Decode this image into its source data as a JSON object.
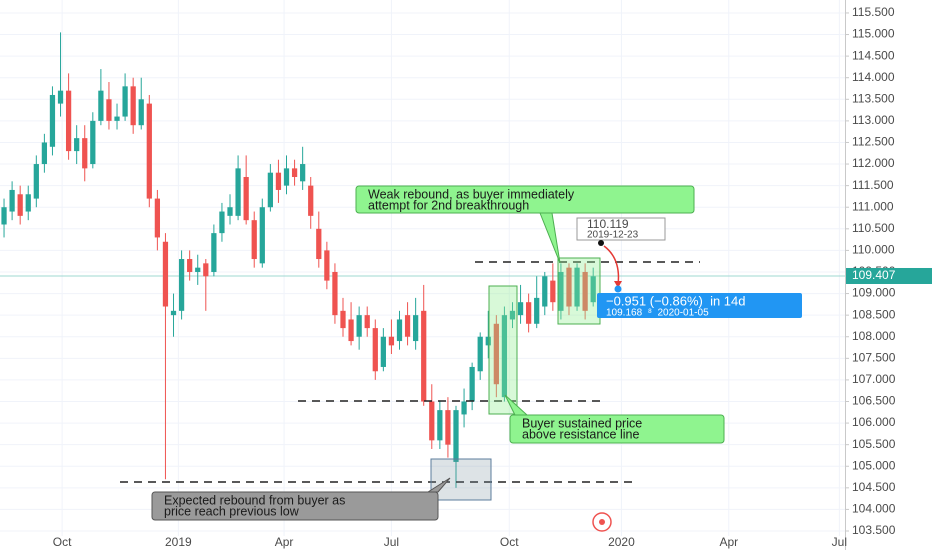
{
  "chart_data": {
    "type": "candlestick",
    "open": [
      110.6,
      110.9,
      111.3,
      110.9,
      111.2,
      112.0,
      112.4,
      113.4,
      113.7,
      112.3,
      112.6,
      112.0,
      113.0,
      113.5,
      113.0,
      113.1,
      113.8,
      112.9,
      113.4,
      111.2,
      110.2,
      108.5,
      108.6,
      109.8,
      109.5,
      109.7,
      109.5,
      110.4,
      110.8,
      110.8,
      111.7,
      110.7,
      109.7,
      111.0,
      111.8,
      111.5,
      111.9,
      111.6,
      111.5,
      110.5,
      110.0,
      109.5,
      108.6,
      108.4,
      108.0,
      108.5,
      108.2,
      107.3,
      108.0,
      107.9,
      108.5,
      107.9,
      108.6,
      106.5,
      105.6,
      106.3,
      105.1,
      106.2,
      106.5,
      107.2,
      107.8,
      108.3,
      106.6,
      108.4,
      108.5,
      108.8,
      108.3,
      108.7,
      109.3,
      108.6,
      109.6,
      108.7,
      109.5,
      108.8
    ],
    "high": [
      111.2,
      111.6,
      111.5,
      111.5,
      112.2,
      112.7,
      113.8,
      115.05,
      114.1,
      112.9,
      112.9,
      113.2,
      114.2,
      113.9,
      113.4,
      114.1,
      114.0,
      114.0,
      113.6,
      111.4,
      110.4,
      109.0,
      110.0,
      110.0,
      109.9,
      109.8,
      110.6,
      111.1,
      111.3,
      112.2,
      112.2,
      110.9,
      111.2,
      112.0,
      112.1,
      112.2,
      112.1,
      112.4,
      111.7,
      110.9,
      110.2,
      109.7,
      108.9,
      108.8,
      108.7,
      108.7,
      108.4,
      108.2,
      108.4,
      108.6,
      108.8,
      108.9,
      109.2,
      106.9,
      106.5,
      106.6,
      106.4,
      106.8,
      107.4,
      108.1,
      108.6,
      108.5,
      108.7,
      108.8,
      109.2,
      109.0,
      109.4,
      109.5,
      109.7,
      109.7,
      109.7,
      109.7,
      109.7,
      109.6
    ],
    "low": [
      110.3,
      110.7,
      110.6,
      110.7,
      111.0,
      111.8,
      112.2,
      113.1,
      112.1,
      112.0,
      111.6,
      111.9,
      112.9,
      112.8,
      112.8,
      113.0,
      112.7,
      112.8,
      111.0,
      110.0,
      104.7,
      108.0,
      108.4,
      109.3,
      109.2,
      108.6,
      109.4,
      110.2,
      110.6,
      110.7,
      110.6,
      109.6,
      109.6,
      110.9,
      111.1,
      111.3,
      111.5,
      111.4,
      110.5,
      109.6,
      109.1,
      108.3,
      108.0,
      107.8,
      107.7,
      108.0,
      107.0,
      107.2,
      107.6,
      107.7,
      107.8,
      107.7,
      106.4,
      105.4,
      105.4,
      105.2,
      104.5,
      105.9,
      106.3,
      107.0,
      107.5,
      106.6,
      106.5,
      108.2,
      108.3,
      108.1,
      108.2,
      108.5,
      108.6,
      108.4,
      108.5,
      108.6,
      108.4,
      108.7
    ],
    "close": [
      111.0,
      111.4,
      110.8,
      111.3,
      112.0,
      112.5,
      113.6,
      113.7,
      112.3,
      112.6,
      111.9,
      113.0,
      113.7,
      113.0,
      113.1,
      113.8,
      112.9,
      113.5,
      111.2,
      110.3,
      108.7,
      108.6,
      109.8,
      109.5,
      109.6,
      109.4,
      110.4,
      110.9,
      111.0,
      111.9,
      110.7,
      109.8,
      111.0,
      111.8,
      111.4,
      111.9,
      111.7,
      112.0,
      110.8,
      109.8,
      109.3,
      108.5,
      108.2,
      107.9,
      108.5,
      108.2,
      107.2,
      108.0,
      107.8,
      108.4,
      108.0,
      108.5,
      106.5,
      105.6,
      106.3,
      105.5,
      106.3,
      106.5,
      107.3,
      108.0,
      108.0,
      106.9,
      108.5,
      108.6,
      108.8,
      108.3,
      108.9,
      109.4,
      108.8,
      109.5,
      108.7,
      109.6,
      108.6,
      109.4
    ],
    "up_color": "#26a69a",
    "down_color": "#ef5350",
    "xlim": [
      -0.5,
      104.2
    ],
    "ylim": [
      103.06,
      115.8
    ],
    "xticks": [
      {
        "value": 7.2,
        "label": "Oct"
      },
      {
        "value": 21.6,
        "label": "2019"
      },
      {
        "value": 34.7,
        "label": "Apr"
      },
      {
        "value": 48.0,
        "label": "Jul"
      },
      {
        "value": 62.6,
        "label": "Oct"
      },
      {
        "value": 76.5,
        "label": "2020"
      },
      {
        "value": 89.8,
        "label": "Apr"
      },
      {
        "value": 103.5,
        "label": "Jul"
      }
    ],
    "yticks": [
      {
        "value": 103.5,
        "label": "103.500"
      },
      {
        "value": 104,
        "label": "104.000"
      },
      {
        "value": 104.5,
        "label": "104.500"
      },
      {
        "value": 105,
        "label": "105.000"
      },
      {
        "value": 105.5,
        "label": "105.500"
      },
      {
        "value": 106,
        "label": "106.000"
      },
      {
        "value": 106.5,
        "label": "106.500"
      },
      {
        "value": 107,
        "label": "107.000"
      },
      {
        "value": 107.5,
        "label": "107.500"
      },
      {
        "value": 108,
        "label": "108.000"
      },
      {
        "value": 108.5,
        "label": "108.500"
      },
      {
        "value": 109,
        "label": "109.000"
      },
      {
        "value": 109.5,
        "label": "109.500"
      },
      {
        "value": 110,
        "label": "110.000"
      },
      {
        "value": 110.5,
        "label": "110.500"
      },
      {
        "value": 111,
        "label": "111.000"
      },
      {
        "value": 111.5,
        "label": "111.500"
      },
      {
        "value": 112,
        "label": "112.000"
      },
      {
        "value": 112.5,
        "label": "112.500"
      },
      {
        "value": 113,
        "label": "113.000"
      },
      {
        "value": 113.5,
        "label": "113.500"
      },
      {
        "value": 114,
        "label": "114.000"
      },
      {
        "value": 114.5,
        "label": "114.500"
      },
      {
        "value": 115,
        "label": "115.000"
      },
      {
        "value": 115.5,
        "label": "115.500"
      }
    ],
    "grid": true,
    "last_price": {
      "value": 109.407,
      "label": "109.407"
    }
  },
  "annotations": {
    "weak_rebound": [
      "Weak rebound, as buyer immediately",
      "attempt for 2nd breakthrough"
    ],
    "buyer_sustained": [
      "Buyer sustained price",
      "above resistance line"
    ],
    "expected_rebound": [
      "Expected rebound from buyer as",
      "price reach previous low"
    ],
    "range_start_price": "110.119",
    "range_start_date": "2019-12-23",
    "range_change": "−0.951 (−0.86%)  in 14d",
    "range_end": "109.168  ⁸  2020-01-05"
  }
}
